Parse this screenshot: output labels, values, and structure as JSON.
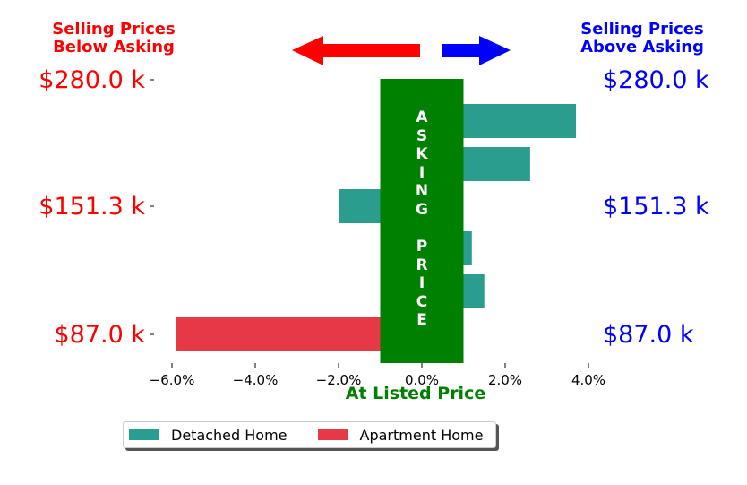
{
  "chart_data": {
    "type": "bar",
    "orientation": "horizontal",
    "x_unit": "%",
    "xlim": [
      -7.0,
      4.5
    ],
    "xticks": [
      -6,
      -4,
      -2,
      0,
      2,
      4
    ],
    "xtick_labels": [
      "−6.0%",
      "−4.0%",
      "−2.0%",
      "0.0%",
      "2.0%",
      "4.0%"
    ],
    "xlabel": "At Listed Price",
    "ytick_labels": [
      "$280.0 k",
      "$151.3 k",
      "$87.0 k"
    ],
    "series": [
      {
        "name": "Detached Home",
        "color": "#2a9d8f",
        "bars": [
          {
            "price_k": 280.0,
            "value": 3.7
          },
          {
            "price_k": 240.0,
            "value": 2.6
          },
          {
            "price_k": 151.3,
            "value": -2.0
          },
          {
            "price_k": 130.0,
            "value": 1.2
          },
          {
            "price_k": 110.0,
            "value": 1.5
          }
        ]
      },
      {
        "name": "Apartment Home",
        "color": "#e63946",
        "bars": [
          {
            "price_k": 87.0,
            "value": -5.9
          }
        ]
      }
    ],
    "center_band": {
      "label": "ASKING PRICE",
      "range": [
        -1.0,
        1.0
      ],
      "color": "#008000"
    },
    "left_header": "Selling Prices\nBelow Asking",
    "right_header": "Selling Prices\nAbove Asking",
    "left_color": "#ff0000",
    "right_color": "#0000ff",
    "label_color": "#008000",
    "legend_position": "below"
  }
}
